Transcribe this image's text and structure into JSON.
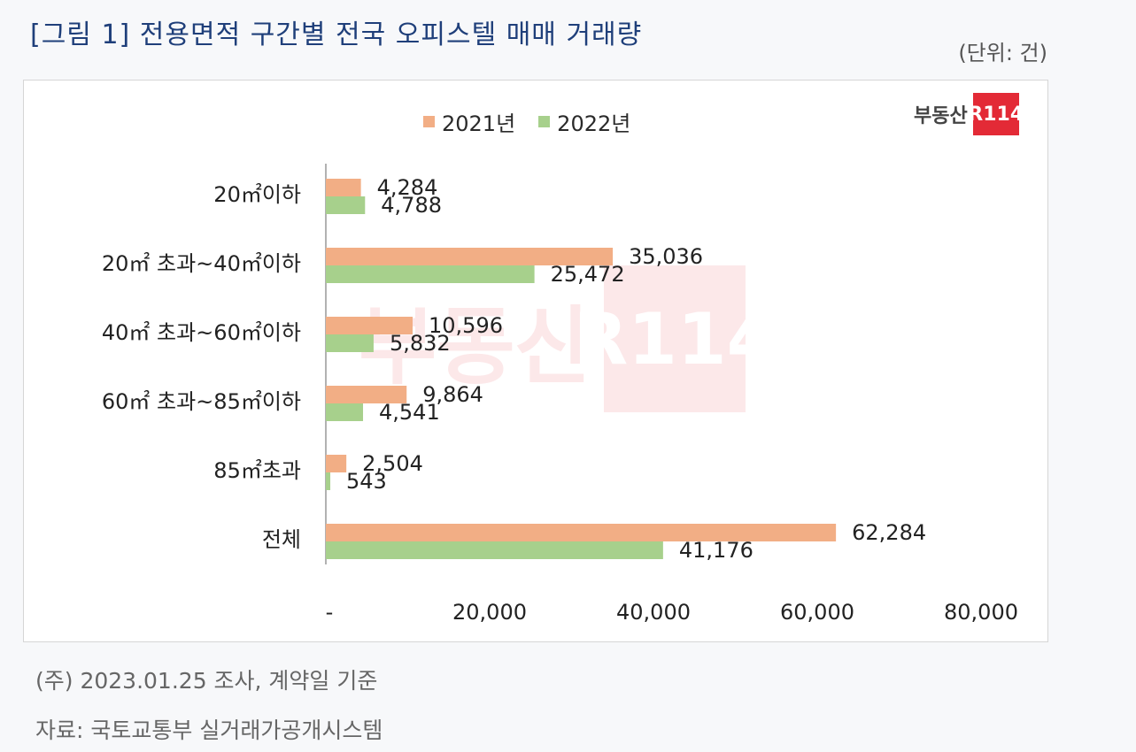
{
  "title": "[그림 1] 전용면적 구간별 전국 오피스텔 매매 거래량",
  "unit": "(단위: 건)",
  "logo": {
    "text": "부동산",
    "box": "R114"
  },
  "notes": {
    "note": "(주) 2023.01.25 조사, 계약일 기준",
    "source": "자료: 국토교통부 실거래가공개시스템"
  },
  "colors": {
    "s2021": "#f2ae85",
    "s2022": "#a7d08c"
  },
  "chart_data": {
    "type": "bar",
    "orientation": "horizontal",
    "categories": [
      "20㎡이하",
      "20㎡ 초과~40㎡이하",
      "40㎡ 초과~60㎡이하",
      "60㎡ 초과~85㎡이하",
      "85㎡초과",
      "전체"
    ],
    "series": [
      {
        "name": "2021년",
        "values": [
          4284,
          35036,
          10596,
          9864,
          2504,
          62284
        ]
      },
      {
        "name": "2022년",
        "values": [
          4788,
          25472,
          5832,
          4541,
          543,
          41176
        ]
      }
    ],
    "data_labels": [
      [
        "4,284",
        "35,036",
        "10,596",
        "9,864",
        "2,504",
        "62,284"
      ],
      [
        "4,788",
        "25,472",
        "5,832",
        "4,541",
        "543",
        "41,176"
      ]
    ],
    "x_ticks": [
      "-",
      "20,000",
      "40,000",
      "60,000",
      "80,000"
    ],
    "xlim": [
      0,
      80000
    ],
    "legend_position": "top"
  }
}
